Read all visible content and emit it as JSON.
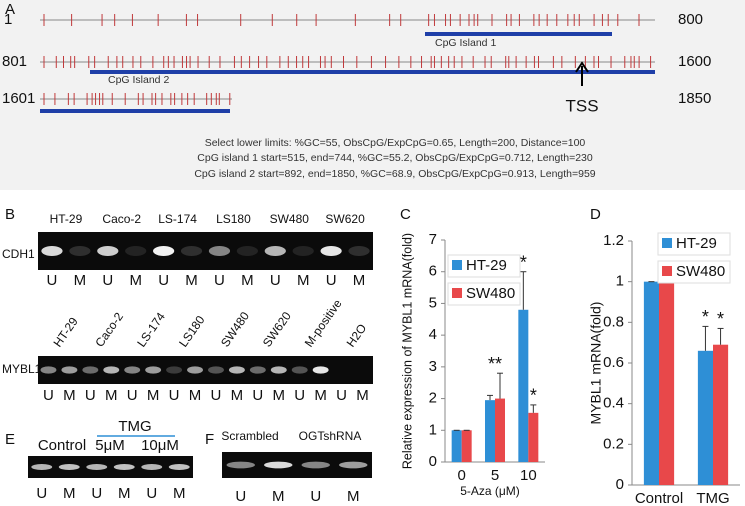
{
  "panel_a": {
    "label": "A",
    "rows": [
      {
        "start": 1,
        "end": 800
      },
      {
        "start": 801,
        "end": 1600
      },
      {
        "start": 1601,
        "end": 1850
      }
    ],
    "islands": [
      "CpG Island 1",
      "CpG Island 2"
    ],
    "tss": "TSS",
    "notes": [
      "Select lower limits: %GC=55, ObsCpG/ExpCpG=0.65, Length=200, Distance=100",
      "CpG island 1 start=515, end=744, %GC=55.2, ObsCpG/ExpCpG=0.712, Length=230",
      "CpG island 2 start=892, end=1850, %GC=68.9, ObsCpG/ExpCpG=0.913, Length=959"
    ]
  },
  "panel_b": {
    "label": "B",
    "gene1": "CDH1",
    "cells1": [
      "HT-29",
      "Caco-2",
      "LS-174",
      "LS180",
      "SW480",
      "SW620"
    ],
    "lanes1": [
      "U",
      "M",
      "U",
      "M",
      "U",
      "M",
      "U",
      "M",
      "U",
      "M",
      "U",
      "M"
    ],
    "gene2": "MYBL1",
    "cells2": [
      "HT-29",
      "Caco-2",
      "LS-174",
      "LS180",
      "SW480",
      "SW620",
      "M-positive",
      "H2O"
    ],
    "lanes2": [
      "U",
      "M",
      "U",
      "M",
      "U",
      "M",
      "U",
      "M",
      "U",
      "M",
      "U",
      "M",
      "U",
      "M",
      "U",
      "M"
    ]
  },
  "panel_e": {
    "label": "E",
    "treatment": "TMG",
    "groups": [
      "Control",
      "5μM",
      "10μM"
    ],
    "lanes": [
      "U",
      "M",
      "U",
      "M",
      "U",
      "M"
    ]
  },
  "panel_f": {
    "label": "F",
    "groups": [
      "Scrambled",
      "OGTshRNA"
    ],
    "lanes": [
      "U",
      "M",
      "U",
      "M"
    ]
  },
  "chart_data": [
    {
      "type": "bar",
      "label": "C",
      "ylabel": "Relative expression of MYBL1 mRNA(fold)",
      "xlabel": "5-Aza (μM)",
      "categories": [
        "0",
        "5",
        "10"
      ],
      "ylim": [
        0,
        7
      ],
      "yticks": [
        0,
        1,
        2,
        3,
        4,
        5,
        6,
        7
      ],
      "series": [
        {
          "name": "HT-29",
          "color": "#2e8fd6",
          "values": [
            1,
            1.95,
            4.8
          ],
          "errors": [
            0,
            0.15,
            1.2
          ]
        },
        {
          "name": "SW480",
          "color": "#e8484a",
          "values": [
            1,
            2.0,
            1.55
          ],
          "errors": [
            0,
            0.8,
            0.25
          ]
        }
      ],
      "annotations": [
        "**",
        "*",
        "*"
      ]
    },
    {
      "type": "bar",
      "label": "D",
      "ylabel": "MYBL1 mRNA(fold)",
      "categories": [
        "Control",
        "TMG"
      ],
      "ylim": [
        0,
        1.2
      ],
      "yticks": [
        0,
        0.2,
        0.4,
        0.6,
        0.8,
        1,
        1.2
      ],
      "series": [
        {
          "name": "HT-29",
          "color": "#2e8fd6",
          "values": [
            1,
            0.66
          ],
          "errors": [
            0,
            0.12
          ]
        },
        {
          "name": "SW480",
          "color": "#e8484a",
          "values": [
            1,
            0.69
          ],
          "errors": [
            0,
            0.08
          ]
        }
      ],
      "annotations": [
        "*",
        "*"
      ]
    }
  ]
}
